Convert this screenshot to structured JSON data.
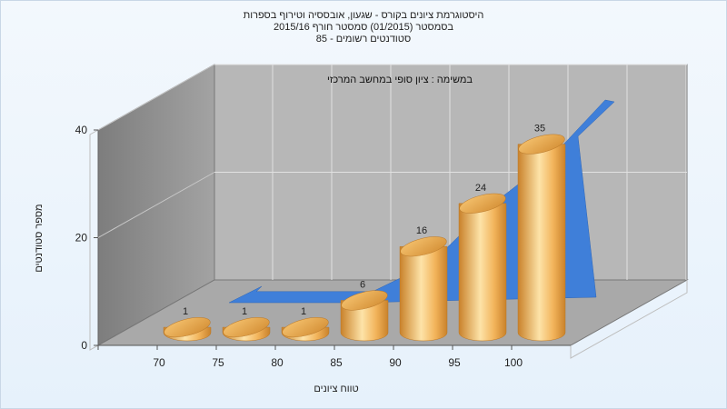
{
  "chart_data": {
    "type": "bar",
    "title_lines": [
      "היסטוגרמת ציונים בקורס - שגעון, אובססיה וטירוף בספרות",
      "בסמסטר  (01/2015)  סמסטר חורף 2015/16",
      "סטודנטים רשומים - 85"
    ],
    "annotation": "במשימה : ציון סופי במחשב המרכזי",
    "xlabel": "טווח ציונים",
    "ylabel": "מספר סטודנטים",
    "categories": [
      "70",
      "75",
      "80",
      "85",
      "90",
      "95",
      "100"
    ],
    "values": [
      1,
      1,
      1,
      6,
      16,
      24,
      35
    ],
    "value_labels": [
      "1",
      "1",
      "1",
      "6",
      "16",
      "24",
      "35"
    ],
    "y_ticks": [
      0,
      20,
      40
    ],
    "ylim": [
      0,
      40
    ],
    "grid": true,
    "colors": {
      "bar_light": "#fde3a8",
      "bar_mid": "#f2b35a",
      "bar_dark": "#c9822b",
      "back_wall": "#b4b4b4",
      "side_wall": "#8e8e8e",
      "floor": "#a8a8a8",
      "area": "#3f7fd9"
    }
  }
}
